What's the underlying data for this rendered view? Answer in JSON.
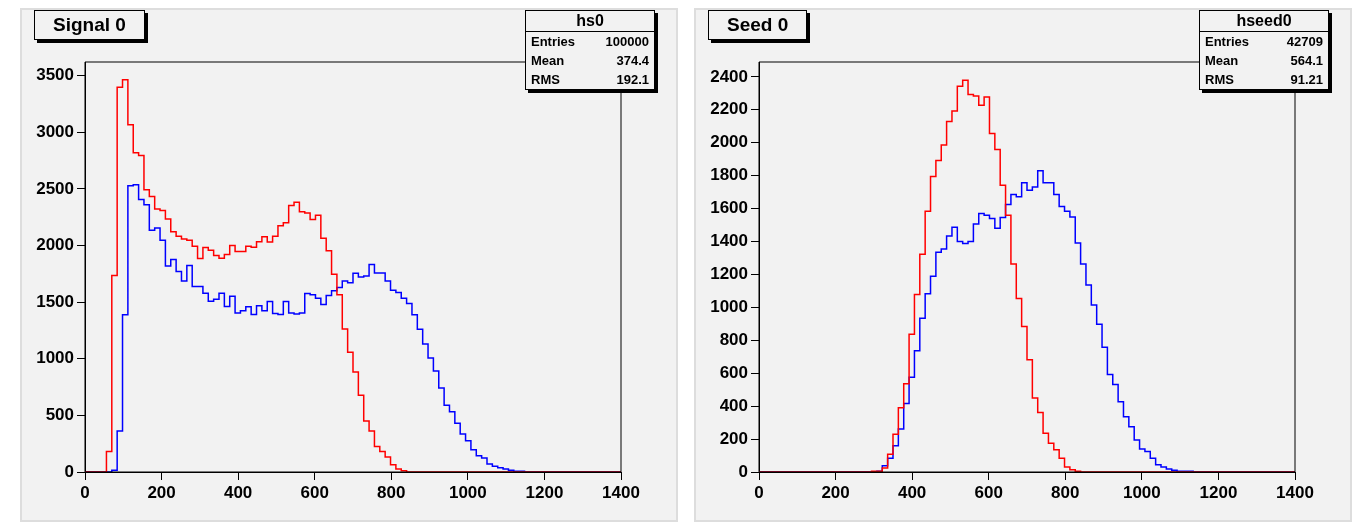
{
  "chart_data": [
    {
      "type": "histogram",
      "title": "Signal 0",
      "annotations": [
        "hs0",
        "Entries",
        "100000",
        "Mean",
        "374.4",
        "RMS",
        "192.1"
      ],
      "bins": [
        0,
        14,
        28,
        42,
        56,
        70,
        84,
        98,
        112,
        126,
        140,
        154,
        168,
        182,
        196,
        210,
        224,
        238,
        252,
        266,
        280,
        294,
        308,
        322,
        336,
        350,
        364,
        378,
        392,
        406,
        420,
        434,
        448,
        462,
        476,
        490,
        504,
        518,
        532,
        546,
        560,
        574,
        588,
        602,
        616,
        630,
        644,
        658,
        672,
        686,
        700,
        714,
        728,
        742,
        756,
        770,
        784,
        798,
        812,
        826,
        840,
        854,
        868,
        882,
        896,
        910,
        924,
        938,
        952,
        966,
        980,
        994,
        1008,
        1022,
        1036,
        1050,
        1064,
        1078,
        1092,
        1106,
        1120,
        1134,
        1148,
        1162,
        1176,
        1190,
        1204,
        1218,
        1232,
        1246,
        1260,
        1274,
        1288,
        1302,
        1316,
        1330,
        1344,
        1358,
        1372,
        1386,
        1400
      ],
      "series": [
        {
          "color": "#ff0000",
          "values": [
            0,
            0,
            0,
            0,
            180,
            1736,
            3397,
            3464,
            3066,
            2818,
            2794,
            2493,
            2432,
            2321,
            2309,
            2233,
            2122,
            2081,
            2058,
            2046,
            1993,
            1885,
            1982,
            1958,
            1911,
            1888,
            1920,
            1999,
            1947,
            1947,
            1993,
            1985,
            2034,
            2078,
            2031,
            2081,
            2175,
            2201,
            2353,
            2382,
            2297,
            2286,
            2230,
            2268,
            2064,
            1953,
            1745,
            1564,
            1263,
            1058,
            883,
            678,
            450,
            362,
            225,
            181,
            132,
            64,
            26,
            12,
            0,
            0,
            0,
            0,
            0,
            0,
            0,
            0,
            0,
            0,
            0,
            0,
            0,
            0,
            0,
            0,
            0,
            0,
            0,
            0,
            0,
            0,
            0,
            0,
            0,
            0,
            0,
            0,
            0,
            0,
            0,
            0,
            0,
            0,
            0,
            0,
            0,
            0,
            0,
            0
          ]
        },
        {
          "color": "#0000ff",
          "values": [
            0,
            0,
            0,
            0,
            0,
            15,
            362,
            1388,
            2528,
            2537,
            2406,
            2359,
            2134,
            2154,
            2046,
            1818,
            1877,
            1771,
            1687,
            1824,
            1637,
            1637,
            1578,
            1508,
            1526,
            1578,
            1462,
            1552,
            1403,
            1424,
            1459,
            1391,
            1467,
            1424,
            1505,
            1400,
            1391,
            1505,
            1403,
            1394,
            1403,
            1575,
            1564,
            1535,
            1479,
            1558,
            1600,
            1628,
            1687,
            1672,
            1754,
            1722,
            1730,
            1833,
            1757,
            1757,
            1687,
            1605,
            1584,
            1535,
            1488,
            1388,
            1260,
            1131,
            1006,
            892,
            742,
            590,
            532,
            430,
            336,
            275,
            196,
            143,
            123,
            70,
            50,
            38,
            26,
            15,
            6,
            6,
            0,
            0,
            0,
            0,
            0,
            0,
            0,
            0,
            0,
            0,
            0,
            0,
            0,
            0,
            0,
            0,
            0,
            0
          ]
        }
      ],
      "xlim": [
        0,
        1400
      ],
      "xticks": [
        0,
        200,
        400,
        600,
        800,
        1000,
        1200,
        1400
      ],
      "ylim": [
        0,
        3620
      ],
      "yticks": [
        0,
        500,
        1000,
        1500,
        2000,
        2500,
        3000,
        3500
      ]
    },
    {
      "type": "histogram",
      "title": "Seed 0",
      "annotations": [
        "hseed0",
        "Entries",
        "42709",
        "Mean",
        "564.1",
        "RMS",
        "91.21"
      ],
      "bins": [
        0,
        14,
        28,
        42,
        56,
        70,
        84,
        98,
        112,
        126,
        140,
        154,
        168,
        182,
        196,
        210,
        224,
        238,
        252,
        266,
        280,
        294,
        308,
        322,
        336,
        350,
        364,
        378,
        392,
        406,
        420,
        434,
        448,
        462,
        476,
        490,
        504,
        518,
        532,
        546,
        560,
        574,
        588,
        602,
        616,
        630,
        644,
        658,
        672,
        686,
        700,
        714,
        728,
        742,
        756,
        770,
        784,
        798,
        812,
        826,
        840,
        854,
        868,
        882,
        896,
        910,
        924,
        938,
        952,
        966,
        980,
        994,
        1008,
        1022,
        1036,
        1050,
        1064,
        1078,
        1092,
        1106,
        1120,
        1134,
        1148,
        1162,
        1176,
        1190,
        1204,
        1218,
        1232,
        1246,
        1260,
        1274,
        1288,
        1302,
        1316,
        1330,
        1344,
        1358,
        1372,
        1386,
        1400
      ],
      "series": [
        {
          "color": "#ff0000",
          "values": [
            0,
            0,
            0,
            0,
            0,
            0,
            0,
            0,
            0,
            0,
            0,
            0,
            0,
            0,
            0,
            0,
            0,
            0,
            0,
            0,
            0,
            4,
            4,
            24,
            108,
            229,
            390,
            536,
            837,
            1078,
            1323,
            1584,
            1795,
            1892,
            1986,
            2128,
            2193,
            2343,
            2379,
            2293,
            2283,
            2227,
            2277,
            2056,
            1958,
            1741,
            1560,
            1263,
            1054,
            884,
            681,
            450,
            362,
            235,
            175,
            135,
            84,
            30,
            14,
            4,
            0,
            0,
            0,
            0,
            0,
            0,
            0,
            0,
            0,
            0,
            0,
            0,
            0,
            0,
            0,
            0,
            0,
            0,
            0,
            0,
            0,
            0,
            0,
            0,
            0,
            0,
            0,
            0,
            0,
            0,
            0,
            0,
            0,
            0,
            0,
            0,
            0,
            0,
            0,
            0
          ]
        },
        {
          "color": "#0000ff",
          "values": [
            0,
            0,
            0,
            0,
            0,
            0,
            0,
            0,
            0,
            0,
            0,
            0,
            0,
            0,
            0,
            0,
            0,
            0,
            0,
            0,
            0,
            0,
            4,
            38,
            84,
            159,
            261,
            416,
            576,
            737,
            934,
            1082,
            1189,
            1335,
            1355,
            1434,
            1486,
            1400,
            1388,
            1400,
            1506,
            1570,
            1560,
            1540,
            1480,
            1546,
            1624,
            1685,
            1671,
            1757,
            1711,
            1731,
            1829,
            1757,
            1757,
            1685,
            1612,
            1584,
            1548,
            1390,
            1263,
            1135,
            1014,
            898,
            757,
            592,
            532,
            426,
            335,
            275,
            195,
            139,
            124,
            84,
            44,
            30,
            18,
            10,
            4,
            4,
            4,
            0,
            0,
            0,
            0,
            0,
            0,
            0,
            0,
            0,
            0,
            0,
            0,
            0,
            0,
            0,
            0,
            0,
            0,
            0
          ]
        }
      ],
      "xlim": [
        0,
        1400
      ],
      "xticks": [
        0,
        200,
        400,
        600,
        800,
        1000,
        1200,
        1400
      ],
      "ylim": [
        0,
        2490
      ],
      "yticks": [
        0,
        200,
        400,
        600,
        800,
        1000,
        1200,
        1400,
        1600,
        1800,
        2000,
        2200,
        2400
      ]
    }
  ]
}
